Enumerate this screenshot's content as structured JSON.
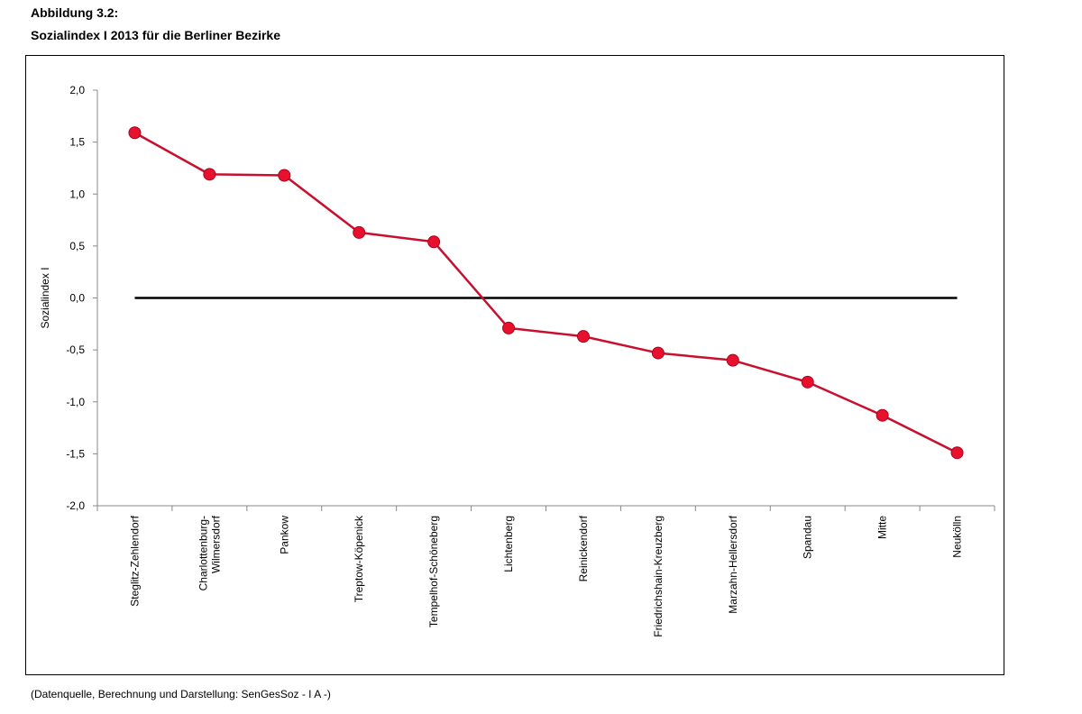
{
  "header": {
    "figure_label": "Abbildung 3.2:",
    "title": "Sozialindex I 2013 für die Berliner Bezirke"
  },
  "footer": {
    "source": "(Datenquelle, Berechnung und Darstellung: SenGesSoz - I A -)"
  },
  "colors": {
    "series": "#c8102e",
    "marker": "#e8112d",
    "zero_line": "#000000",
    "axis": "#888888"
  },
  "chart_data": {
    "type": "line",
    "title": "",
    "xlabel": "",
    "ylabel": "Sozialindex I",
    "ylim": [
      -2.0,
      2.0
    ],
    "yticks": [
      2.0,
      1.5,
      1.0,
      0.5,
      0.0,
      -0.5,
      -1.0,
      -1.5,
      -2.0
    ],
    "ytick_labels": [
      "2,0",
      "1,5",
      "1,0",
      "0,5",
      "0,0",
      "-0,5",
      "-1,0",
      "-1,5",
      "-2,0"
    ],
    "grid": false,
    "legend": "none",
    "reference_line_y": 0.0,
    "categories": [
      [
        "Steglitz-Zehlendorf"
      ],
      [
        "Charlottenburg-",
        "Wilmersdorf"
      ],
      [
        "Pankow"
      ],
      [
        "Treptow-Köpenick"
      ],
      [
        "Tempelhof-Schöneberg"
      ],
      [
        "Lichtenberg"
      ],
      [
        "Reinickendorf"
      ],
      [
        "Friedrichshain-Kreuzberg"
      ],
      [
        "Marzahn-Hellersdorf"
      ],
      [
        "Spandau"
      ],
      [
        "Mitte"
      ],
      [
        "Neukölln"
      ]
    ],
    "series": [
      {
        "values": [
          1.59,
          1.19,
          1.18,
          0.63,
          0.54,
          -0.29,
          -0.37,
          -0.53,
          -0.6,
          -0.81,
          -1.13,
          -1.49
        ]
      }
    ]
  }
}
